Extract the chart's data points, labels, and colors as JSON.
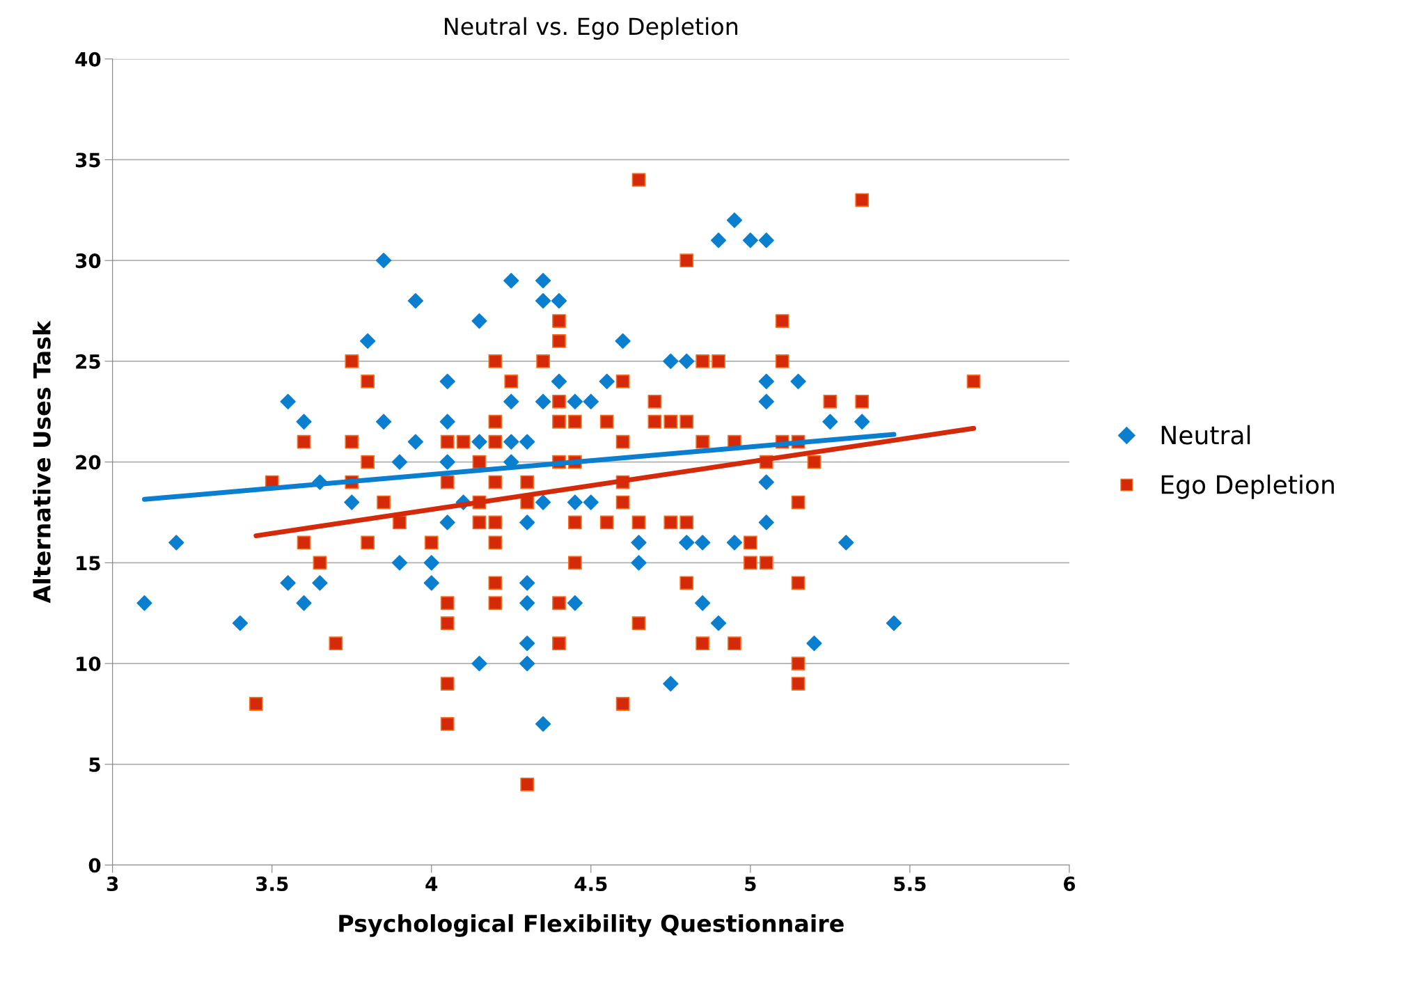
{
  "chart_data": {
    "type": "scatter",
    "title": "Neutral vs. Ego Depletion",
    "xlabel": "Psychological Flexibility Questionnaire",
    "ylabel": "Alternative Uses Task",
    "xlim": [
      3,
      6
    ],
    "xticks": [
      3,
      3.5,
      4,
      4.5,
      5,
      5.5,
      6
    ],
    "ylim": [
      0,
      40
    ],
    "yticks": [
      0,
      5,
      10,
      15,
      20,
      25,
      30,
      35,
      40
    ],
    "grid": "y",
    "legend": "right",
    "series": [
      {
        "name": "Neutral",
        "color": "#0a7fcf",
        "marker": "diamond",
        "x": [
          3.1,
          3.2,
          3.4,
          3.55,
          3.55,
          3.6,
          3.6,
          3.65,
          3.65,
          3.75,
          3.8,
          3.85,
          3.85,
          3.9,
          3.9,
          3.95,
          3.95,
          4.0,
          4.0,
          4.05,
          4.05,
          4.05,
          4.05,
          4.1,
          4.15,
          4.15,
          4.15,
          4.25,
          4.25,
          4.25,
          4.25,
          4.3,
          4.3,
          4.3,
          4.3,
          4.3,
          4.3,
          4.35,
          4.35,
          4.35,
          4.35,
          4.35,
          4.4,
          4.4,
          4.45,
          4.45,
          4.45,
          4.5,
          4.5,
          4.55,
          4.6,
          4.65,
          4.65,
          4.75,
          4.75,
          4.8,
          4.8,
          4.85,
          4.85,
          4.9,
          4.9,
          4.95,
          4.95,
          5.0,
          5.05,
          5.05,
          5.05,
          5.05,
          5.05,
          5.15,
          5.2,
          5.25,
          5.3,
          5.35,
          5.45
        ],
        "values": [
          13,
          16,
          12,
          23,
          14,
          22,
          13,
          19,
          14,
          18,
          26,
          30,
          22,
          20,
          15,
          21,
          28,
          15,
          14,
          24,
          22,
          20,
          17,
          18,
          27,
          21,
          10,
          29,
          23,
          21,
          20,
          21,
          17,
          14,
          13,
          11,
          10,
          29,
          28,
          23,
          18,
          7,
          28,
          24,
          23,
          18,
          13,
          23,
          18,
          24,
          26,
          16,
          15,
          25,
          9,
          25,
          16,
          16,
          13,
          31,
          12,
          32,
          16,
          31,
          31,
          24,
          23,
          19,
          17,
          24,
          11,
          22,
          16,
          22,
          12
        ]
      },
      {
        "name": "Ego Depletion",
        "color": "#d42a0a",
        "marker": "square",
        "x": [
          3.45,
          3.5,
          3.6,
          3.6,
          3.65,
          3.7,
          3.75,
          3.75,
          3.75,
          3.8,
          3.8,
          3.8,
          3.85,
          3.9,
          4.0,
          4.05,
          4.05,
          4.05,
          4.05,
          4.05,
          4.05,
          4.1,
          4.15,
          4.15,
          4.15,
          4.2,
          4.2,
          4.2,
          4.2,
          4.2,
          4.2,
          4.2,
          4.2,
          4.25,
          4.3,
          4.3,
          4.3,
          4.35,
          4.4,
          4.4,
          4.4,
          4.4,
          4.4,
          4.4,
          4.4,
          4.45,
          4.45,
          4.45,
          4.45,
          4.55,
          4.55,
          4.6,
          4.6,
          4.6,
          4.6,
          4.6,
          4.65,
          4.65,
          4.65,
          4.7,
          4.7,
          4.75,
          4.75,
          4.8,
          4.8,
          4.8,
          4.8,
          4.85,
          4.85,
          4.85,
          4.9,
          4.95,
          4.95,
          5.0,
          5.0,
          5.05,
          5.05,
          5.1,
          5.1,
          5.1,
          5.15,
          5.15,
          5.15,
          5.15,
          5.15,
          5.2,
          5.25,
          5.35,
          5.35,
          5.7
        ],
        "values": [
          8,
          19,
          21,
          16,
          15,
          11,
          25,
          21,
          19,
          24,
          20,
          16,
          18,
          17,
          16,
          21,
          19,
          13,
          12,
          9,
          7,
          21,
          20,
          18,
          17,
          25,
          22,
          21,
          19,
          17,
          16,
          14,
          13,
          24,
          19,
          18,
          4,
          25,
          27,
          26,
          23,
          22,
          20,
          13,
          11,
          22,
          20,
          17,
          15,
          22,
          17,
          24,
          21,
          19,
          18,
          8,
          34,
          17,
          12,
          23,
          22,
          22,
          17,
          30,
          22,
          17,
          14,
          25,
          21,
          11,
          25,
          21,
          11,
          16,
          15,
          20,
          15,
          27,
          25,
          21,
          21,
          18,
          14,
          10,
          9,
          20,
          23,
          33,
          23,
          24
        ]
      },
      {
        "type": "line",
        "color": "#0a7fcf",
        "x": [
          3.1,
          5.45
        ],
        "values": [
          18.15,
          21.37
        ]
      },
      {
        "type": "line",
        "color": "#d42a0a",
        "x": [
          3.45,
          5.7
        ],
        "values": [
          16.34,
          21.67
        ]
      }
    ]
  }
}
